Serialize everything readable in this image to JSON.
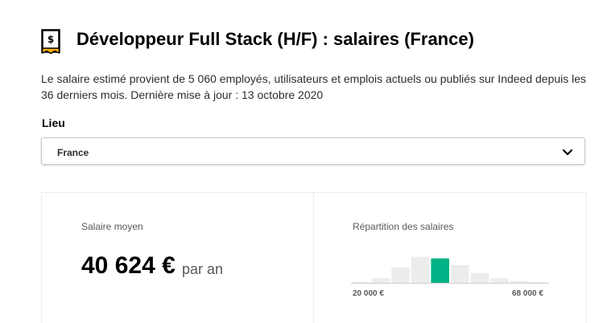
{
  "header": {
    "title": "Développeur Full Stack (H/F) : salaires (France)",
    "icon": "salary-document-icon",
    "icon_color": "#ffb100"
  },
  "description": "Le salaire estimé provient de 5 060 employés, utilisateurs et emplois actuels ou publiés sur Indeed depuis les 36 derniers mois. Dernière mise à jour : 13 octobre 2020",
  "location": {
    "label": "Lieu",
    "selected": "France"
  },
  "salary": {
    "average_label": "Salaire moyen",
    "average_value": "40 624 €",
    "period": "par an"
  },
  "distribution": {
    "label": "Répartition des salaires",
    "min_label": "20 000 €",
    "max_label": "68 000 €",
    "highlight_color": "#00b386",
    "bar_color": "#ececec"
  },
  "chart_data": {
    "type": "bar",
    "values": [
      0.03,
      0.15,
      0.5,
      0.85,
      0.8,
      0.58,
      0.32,
      0.15,
      0.06,
      0.02
    ],
    "highlight_index": 4
  }
}
